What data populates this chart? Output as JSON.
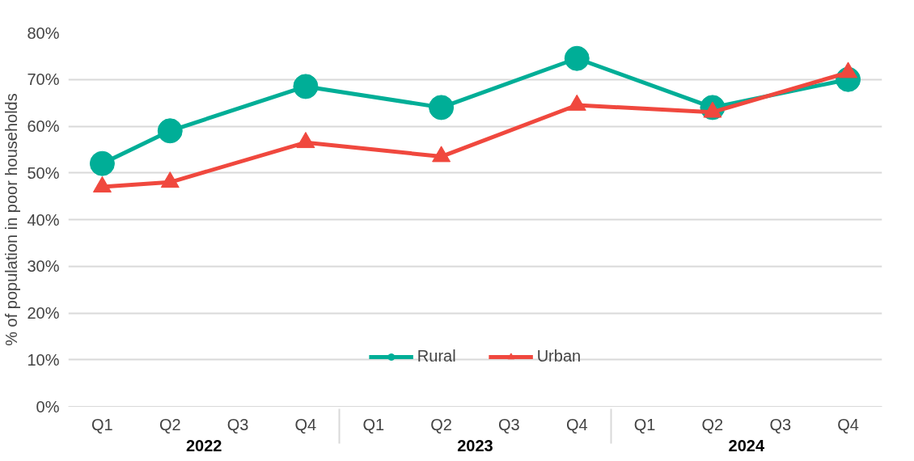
{
  "chart_data": {
    "type": "line",
    "ylabel": "% of population in poor households",
    "categories": [
      "Q1",
      "Q2",
      "Q3",
      "Q4",
      "Q1",
      "Q2",
      "Q3",
      "Q4",
      "Q1",
      "Q2",
      "Q3",
      "Q4"
    ],
    "annotations": [
      "2022",
      "2023",
      "2024"
    ],
    "series": [
      {
        "name": "Rural",
        "color": "#00ae97",
        "marker": "circle",
        "values": [
          52,
          59,
          null,
          68.5,
          null,
          64,
          null,
          74.5,
          null,
          64,
          null,
          70
        ]
      },
      {
        "name": "Urban",
        "color": "#f0483e",
        "marker": "triangle",
        "values": [
          47,
          48,
          null,
          56.5,
          null,
          53.5,
          null,
          64.5,
          null,
          63,
          null,
          71.5
        ]
      }
    ],
    "ylim": [
      0,
      80
    ],
    "yticks": [
      {
        "value": 0,
        "label": "0%"
      },
      {
        "value": 10,
        "label": "10%"
      },
      {
        "value": 20,
        "label": "20%"
      },
      {
        "value": 30,
        "label": "30%"
      },
      {
        "value": 40,
        "label": "40%"
      },
      {
        "value": 50,
        "label": "50%"
      },
      {
        "value": 60,
        "label": "60%"
      },
      {
        "value": 70,
        "label": "70%"
      },
      {
        "value": 80,
        "label": "80%"
      }
    ],
    "grid": "y",
    "legend": "bottom",
    "line_style": "solid"
  }
}
